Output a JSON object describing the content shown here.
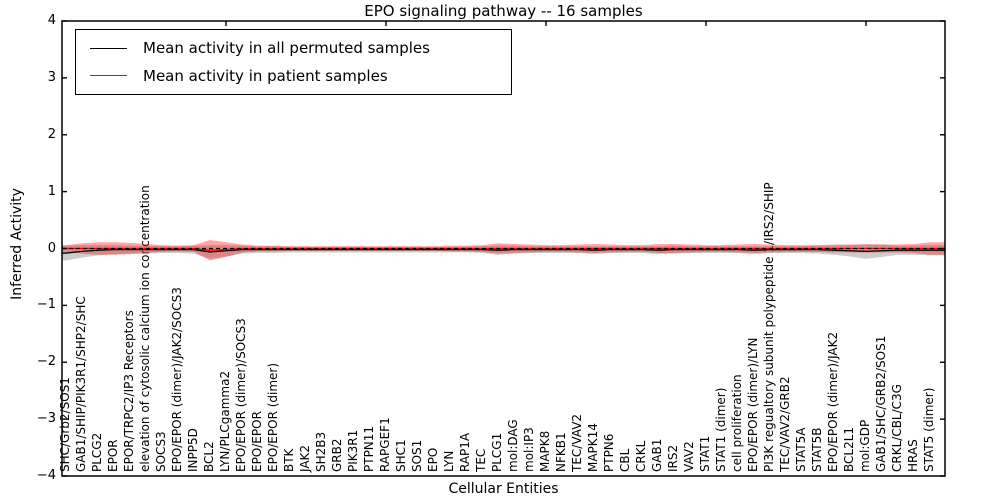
{
  "title": "EPO signaling pathway -- 16 samples",
  "axes": {
    "xlabel": "Cellular Entities",
    "ylabel": "Inferred Activity",
    "yticks": [
      "4",
      "3",
      "2",
      "1",
      "0",
      "−1",
      "−2",
      "−3",
      "−4"
    ],
    "ylim": [
      -4,
      4
    ]
  },
  "legend": {
    "entries": [
      {
        "label": "Mean activity in all permuted samples",
        "color": "#000000"
      },
      {
        "label": "Mean activity in patient samples",
        "color": "#ff0000"
      }
    ]
  },
  "chart_data": {
    "type": "line",
    "title": "EPO signaling pathway -- 16 samples",
    "xlabel": "Cellular Entities",
    "ylabel": "Inferred Activity",
    "ylim": [
      -4,
      4
    ],
    "grid": false,
    "legend_position": "upper left",
    "reference_line": {
      "y": 0,
      "style": "dashed",
      "color": "#000000"
    },
    "categories": [
      "SHC/Grb2/SOS1",
      "GAB1/SHIP/PIK3R1/SHP2/SHC",
      "PLCG2",
      "EPOR",
      "EPOR/TRPC2/IP3 Receptors",
      "elevation of cytosolic calcium ion concentration",
      "SOCS3",
      "EPO/EPOR (dimer)/JAK2/SOCS3",
      "INPP5D",
      "BCL2",
      "LYN/PLCgamma2",
      "EPO/EPOR (dimer)/SOCS3",
      "EPO/EPOR",
      "EPO/EPOR (dimer)",
      "BTK",
      "JAK2",
      "SH2B3",
      "GRB2",
      "PIK3R1",
      "PTPN11",
      "RAPGEF1",
      "SHC1",
      "SOS1",
      "EPO",
      "LYN",
      "RAP1A",
      "TEC",
      "PLCG1",
      "mol:DAG",
      "mol:IP3",
      "MAPK8",
      "NFKB1",
      "TEC/VAV2",
      "MAPK14",
      "PTPN6",
      "CBL",
      "CRKL",
      "GAB1",
      "IRS2",
      "VAV2",
      "STAT1",
      "STAT1 (dimer)",
      "cell proliferation",
      "EPO/EPOR (dimer)/LYN",
      "PI3K regualtory subunit polypeptide 1/IRS2/SHIP",
      "TEC/VAV2/GRB2",
      "STAT5A",
      "STAT5B",
      "EPO/EPOR (dimer)/JAK2",
      "BCL2L1",
      "mol:GDP",
      "GAB1/SHC/GRB2/SOS1",
      "CRKL/CBL/C3G",
      "HRAS",
      "STAT5 (dimer)"
    ],
    "series": [
      {
        "name": "Mean activity in all permuted samples",
        "color": "#000000",
        "band_color": "rgba(128,128,128,0.40)",
        "values": [
          -0.08,
          -0.05,
          -0.03,
          -0.02,
          -0.02,
          -0.02,
          -0.02,
          -0.02,
          -0.02,
          -0.06,
          -0.04,
          -0.02,
          -0.02,
          -0.02,
          -0.02,
          -0.02,
          -0.02,
          -0.02,
          -0.02,
          -0.02,
          -0.02,
          -0.02,
          -0.02,
          -0.02,
          -0.02,
          -0.02,
          -0.02,
          -0.03,
          -0.02,
          -0.02,
          -0.02,
          -0.02,
          -0.02,
          -0.03,
          -0.02,
          -0.02,
          -0.02,
          -0.03,
          -0.02,
          -0.02,
          -0.02,
          -0.02,
          -0.02,
          -0.03,
          -0.02,
          -0.02,
          -0.02,
          -0.02,
          -0.03,
          -0.04,
          -0.05,
          -0.04,
          -0.03,
          -0.03,
          -0.03
        ],
        "band_halfwidth": [
          0.13,
          0.11,
          0.09,
          0.08,
          0.07,
          0.07,
          0.06,
          0.06,
          0.07,
          0.12,
          0.1,
          0.07,
          0.06,
          0.06,
          0.05,
          0.05,
          0.05,
          0.05,
          0.05,
          0.05,
          0.05,
          0.05,
          0.05,
          0.05,
          0.05,
          0.05,
          0.06,
          0.08,
          0.07,
          0.06,
          0.06,
          0.06,
          0.06,
          0.07,
          0.06,
          0.06,
          0.06,
          0.07,
          0.07,
          0.06,
          0.06,
          0.06,
          0.06,
          0.07,
          0.06,
          0.06,
          0.06,
          0.07,
          0.08,
          0.1,
          0.13,
          0.11,
          0.08,
          0.08,
          0.09
        ]
      },
      {
        "name": "Mean activity in patient samples",
        "color": "#ff0000",
        "band_color": "rgba(255,0,0,0.35)",
        "values": [
          0,
          0,
          0,
          0,
          0,
          0,
          0,
          0,
          0,
          -0.03,
          -0.02,
          0,
          0,
          0,
          0,
          0,
          0,
          0,
          0,
          0,
          0,
          0,
          0,
          0,
          0,
          0,
          0,
          0,
          0,
          0,
          0,
          0,
          0,
          0,
          0,
          0,
          0,
          0,
          0,
          0,
          0,
          0,
          0,
          0,
          0,
          0,
          0,
          0,
          0,
          0,
          0,
          0,
          0,
          0,
          0
        ],
        "band_halfwidth": [
          0.06,
          0.09,
          0.11,
          0.11,
          0.1,
          0.08,
          0.06,
          0.05,
          0.06,
          0.18,
          0.13,
          0.07,
          0.05,
          0.05,
          0.04,
          0.04,
          0.04,
          0.04,
          0.04,
          0.04,
          0.04,
          0.04,
          0.04,
          0.04,
          0.05,
          0.05,
          0.06,
          0.09,
          0.08,
          0.07,
          0.06,
          0.06,
          0.07,
          0.08,
          0.07,
          0.06,
          0.06,
          0.08,
          0.08,
          0.07,
          0.06,
          0.06,
          0.07,
          0.08,
          0.07,
          0.06,
          0.06,
          0.06,
          0.07,
          0.07,
          0.07,
          0.07,
          0.07,
          0.08,
          0.11
        ]
      }
    ]
  }
}
